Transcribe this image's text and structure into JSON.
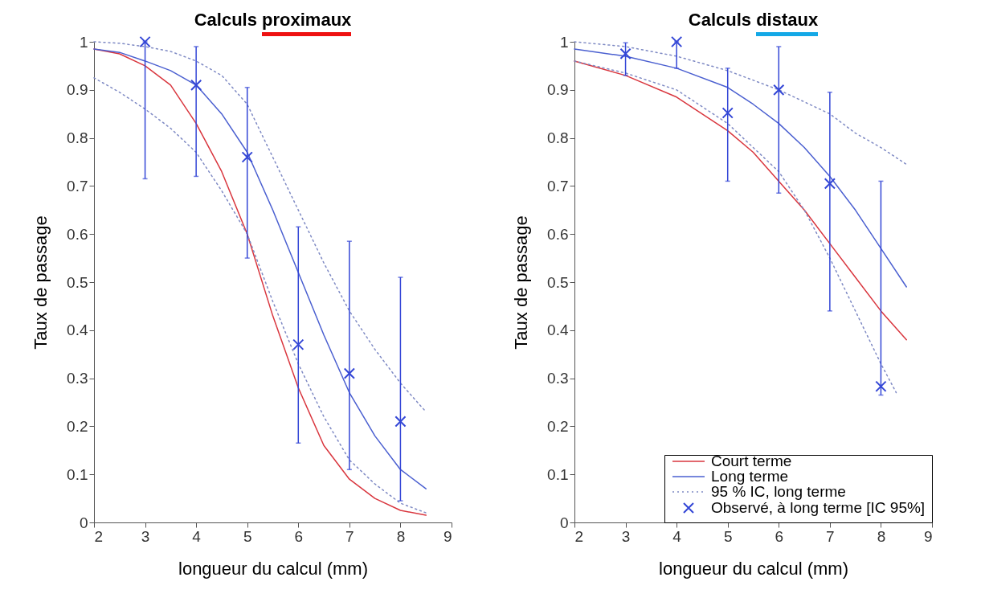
{
  "chart_data": [
    {
      "type": "line",
      "title": "Calculs proximaux",
      "xlabel": "longueur du calcul (mm)",
      "ylabel": "Taux de passage",
      "xlim": [
        2,
        9
      ],
      "xticks": [
        2,
        3,
        4,
        5,
        6,
        7,
        8,
        9
      ],
      "ylim": [
        0,
        1
      ],
      "yticks": [
        0,
        0.1,
        0.2,
        0.3,
        0.4,
        0.5,
        0.6,
        0.7,
        0.8,
        0.9,
        1
      ],
      "grid": false,
      "legend": false,
      "series": [
        {
          "type": "line",
          "color": "#d9363e",
          "line_style": "solid",
          "x": [
            2,
            2.5,
            3,
            3.5,
            4,
            4.5,
            5,
            5.5,
            6,
            6.5,
            7,
            7.5,
            8,
            8.5
          ],
          "values": [
            0.985,
            0.975,
            0.95,
            0.91,
            0.83,
            0.73,
            0.6,
            0.43,
            0.28,
            0.16,
            0.09,
            0.05,
            0.025,
            0.015
          ]
        },
        {
          "type": "line",
          "color": "#4a5fd0",
          "line_style": "solid",
          "x": [
            2,
            2.5,
            3,
            3.5,
            4,
            4.5,
            5,
            5.5,
            6,
            6.5,
            7,
            7.5,
            8,
            8.5
          ],
          "values": [
            0.985,
            0.978,
            0.96,
            0.94,
            0.91,
            0.85,
            0.77,
            0.65,
            0.52,
            0.39,
            0.27,
            0.18,
            0.11,
            0.07
          ]
        },
        {
          "type": "line",
          "color": "#7f8ac4",
          "line_style": "dotted",
          "x": [
            2,
            2.5,
            3,
            3.5,
            4,
            4.5,
            5,
            5.5,
            6,
            6.5,
            7,
            7.5,
            8,
            8.5
          ],
          "values": [
            1.0,
            0.997,
            0.99,
            0.98,
            0.96,
            0.93,
            0.87,
            0.76,
            0.65,
            0.54,
            0.44,
            0.36,
            0.29,
            0.23
          ]
        },
        {
          "type": "line",
          "color": "#7f8ac4",
          "line_style": "dotted",
          "x": [
            2,
            2.5,
            3,
            3.5,
            4,
            4.5,
            5,
            5.5,
            6,
            6.5,
            7,
            7.5,
            8,
            8.5
          ],
          "values": [
            0.925,
            0.895,
            0.86,
            0.82,
            0.77,
            0.69,
            0.6,
            0.46,
            0.33,
            0.22,
            0.13,
            0.08,
            0.04,
            0.02
          ]
        },
        {
          "type": "scatter",
          "color": "#3346d6",
          "marker": "cross",
          "x": [
            3,
            4,
            5,
            6,
            7,
            8
          ],
          "values": [
            1.0,
            0.91,
            0.76,
            0.37,
            0.31,
            0.21
          ],
          "errors": [
            [
              0.715,
              1.0
            ],
            [
              0.72,
              0.99
            ],
            [
              0.55,
              0.905
            ],
            [
              0.165,
              0.615
            ],
            [
              0.11,
              0.585
            ],
            [
              0.045,
              0.51
            ]
          ]
        }
      ]
    },
    {
      "type": "line",
      "title": "Calculs distaux",
      "xlabel": "longueur du calcul (mm)",
      "ylabel": "Taux de passage",
      "xlim": [
        2,
        9
      ],
      "xticks": [
        2,
        3,
        4,
        5,
        6,
        7,
        8,
        9
      ],
      "ylim": [
        0,
        1
      ],
      "yticks": [
        0,
        0.1,
        0.2,
        0.3,
        0.4,
        0.5,
        0.6,
        0.7,
        0.8,
        0.9,
        1
      ],
      "grid": false,
      "legend": "bottom right",
      "series": [
        {
          "name": "Court terme",
          "type": "line",
          "color": "#d9363e",
          "line_style": "solid",
          "x": [
            2,
            3,
            4,
            5,
            5.5,
            6,
            6.5,
            7,
            7.5,
            8,
            8.5
          ],
          "values": [
            0.96,
            0.93,
            0.885,
            0.815,
            0.77,
            0.71,
            0.65,
            0.58,
            0.51,
            0.44,
            0.38
          ]
        },
        {
          "name": "Long terme",
          "type": "line",
          "color": "#4a5fd0",
          "line_style": "solid",
          "x": [
            2,
            3,
            4,
            5,
            5.5,
            6,
            6.5,
            7,
            7.5,
            8,
            8.5
          ],
          "values": [
            0.985,
            0.97,
            0.945,
            0.905,
            0.87,
            0.83,
            0.78,
            0.72,
            0.65,
            0.57,
            0.49
          ]
        },
        {
          "name": "95 % IC, long terme",
          "type": "line",
          "color": "#7f8ac4",
          "line_style": "dotted",
          "x": [
            2,
            3,
            4,
            5,
            6,
            7,
            7.5,
            8,
            8.5
          ],
          "values": [
            1.0,
            0.99,
            0.97,
            0.94,
            0.9,
            0.85,
            0.81,
            0.78,
            0.745
          ]
        },
        {
          "type": "line",
          "color": "#7f8ac4",
          "line_style": "dotted",
          "x": [
            2,
            3,
            4,
            5,
            6,
            6.5,
            7,
            7.5,
            8,
            8.3
          ],
          "values": [
            0.96,
            0.935,
            0.9,
            0.83,
            0.73,
            0.65,
            0.55,
            0.44,
            0.33,
            0.27
          ]
        },
        {
          "name": "Observé, à long terme [IC 95%]",
          "type": "scatter",
          "color": "#3346d6",
          "marker": "cross",
          "x": [
            3,
            4,
            5,
            6,
            7,
            8
          ],
          "values": [
            0.975,
            1.0,
            0.852,
            0.9,
            0.705,
            0.283
          ],
          "errors": [
            [
              0.93,
              0.998
            ],
            [
              0.945,
              1.0
            ],
            [
              0.71,
              0.945
            ],
            [
              0.685,
              0.99
            ],
            [
              0.44,
              0.895
            ],
            [
              0.265,
              0.71
            ]
          ]
        }
      ]
    }
  ]
}
